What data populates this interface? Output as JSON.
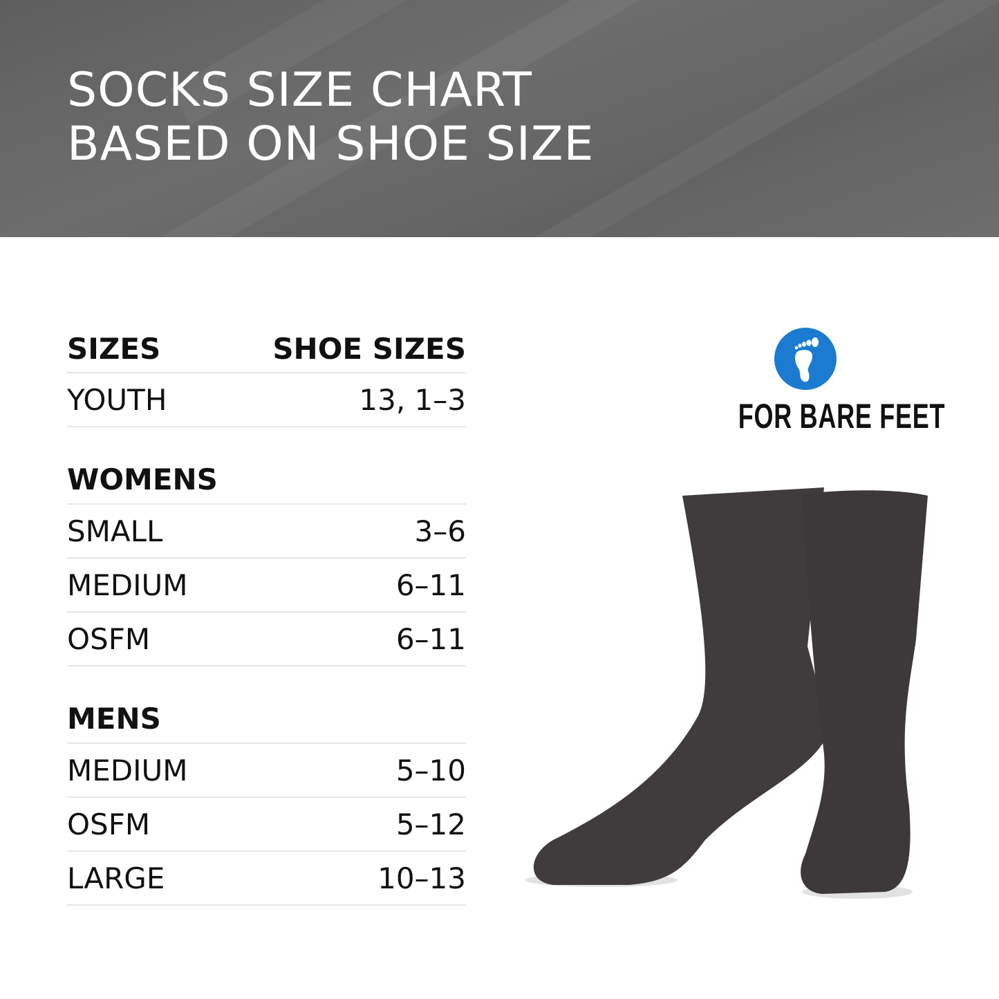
{
  "header": {
    "title_line1": "SOCKS SIZE CHART",
    "title_line2": "BASED ON SHOE SIZE",
    "background": "#666666"
  },
  "table": {
    "col_sizes": "SIZES",
    "col_shoe_sizes": "SHOE SIZES",
    "youth": [
      {
        "size": "YOUTH",
        "shoe": "13, 1–3"
      }
    ],
    "womens_label": "WOMENS",
    "womens": [
      {
        "size": "SMALL",
        "shoe": "3–6"
      },
      {
        "size": "MEDIUM",
        "shoe": "6–11"
      },
      {
        "size": "OSFM",
        "shoe": "6–11"
      }
    ],
    "mens_label": "MENS",
    "mens": [
      {
        "size": "MEDIUM",
        "shoe": "5–10"
      },
      {
        "size": "OSFM",
        "shoe": "5–12"
      },
      {
        "size": "LARGE",
        "shoe": "10–13"
      }
    ]
  },
  "logo": {
    "text": "FOR BARE FEET",
    "icon": "footprint-icon",
    "color": "#1a7bd0"
  },
  "product": {
    "sock_color": "#403c3d"
  }
}
